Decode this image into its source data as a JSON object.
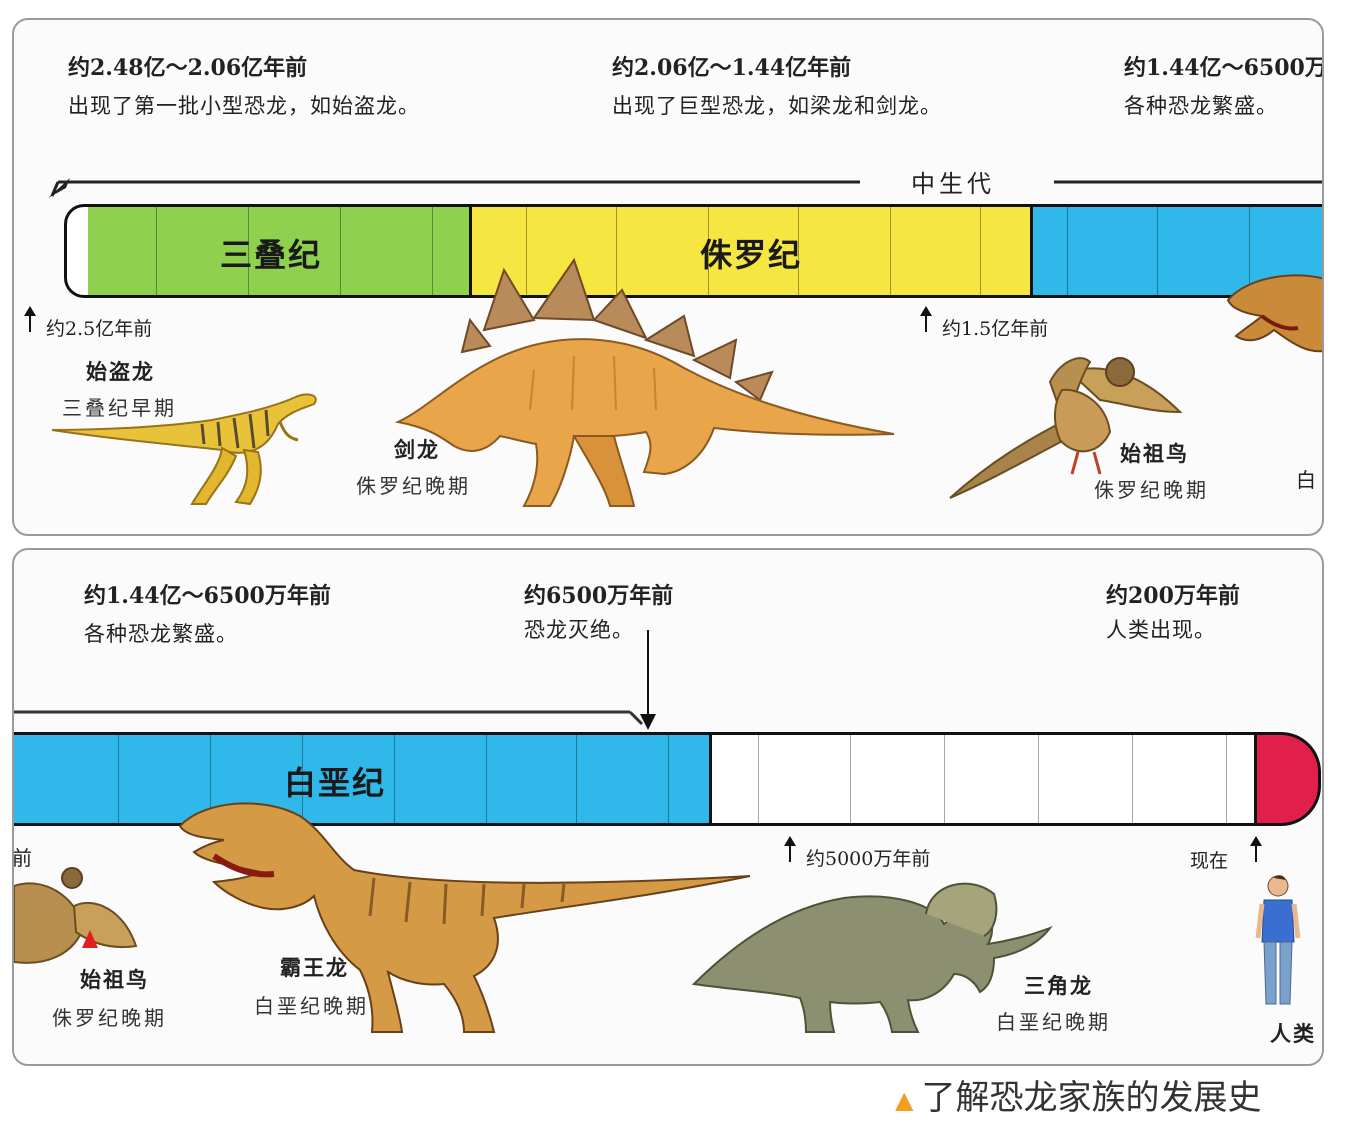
{
  "panel_top": {
    "eras": [
      {
        "title": "约2.48亿～2.06亿年前",
        "desc": "出现了第一批小型恐龙，如始盗龙。"
      },
      {
        "title": "约2.06亿～1.44亿年前",
        "desc": "出现了巨型恐龙，如梁龙和剑龙。"
      },
      {
        "title": "约1.44亿～6500万",
        "desc": "各种恐龙繁盛。"
      }
    ],
    "era_label": "中生代",
    "periods": [
      "三叠纪",
      "侏罗纪"
    ],
    "ticks": [
      "约2.5亿年前",
      "约1.5亿年前"
    ],
    "dinos": [
      {
        "name": "始盗龙",
        "period": "三叠纪早期"
      },
      {
        "name": "剑龙",
        "period": "侏罗纪晚期"
      },
      {
        "name": "始祖鸟",
        "period": "侏罗纪晚期"
      }
    ],
    "edge_text": "白"
  },
  "panel_bottom": {
    "eras": [
      {
        "title": "约1.44亿～6500万年前",
        "desc": "各种恐龙繁盛。"
      },
      {
        "title": "约6500万年前",
        "desc": "恐龙灭绝。"
      },
      {
        "title": "约200万年前",
        "desc": "人类出现。"
      }
    ],
    "periods": [
      "白垩纪"
    ],
    "ticks": [
      "约5000万年前",
      "现在"
    ],
    "edge_text": "前",
    "dinos": [
      {
        "name": "始祖鸟",
        "period": "侏罗纪晚期"
      },
      {
        "name": "霸王龙",
        "period": "白垩纪晚期"
      },
      {
        "name": "三角龙",
        "period": "白垩纪晚期"
      }
    ],
    "human_label": "人类"
  },
  "caption": "了解恐龙家族的发展史",
  "colors": {
    "triassic": "#8fd14f",
    "jurassic": "#f5e642",
    "cretaceous": "#30b8ea",
    "cenozoic": "#ffffff",
    "present": "#e0204a",
    "caption_marker": "#f0a020"
  }
}
